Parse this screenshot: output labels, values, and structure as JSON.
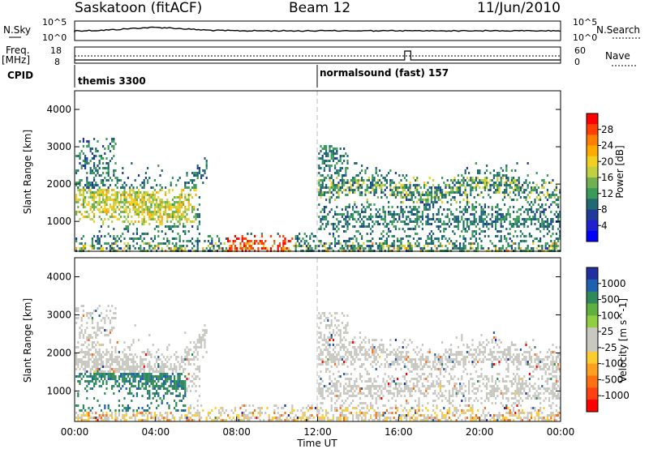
{
  "header": {
    "station": "Saskatoon (fitACF)",
    "beam": "Beam 12",
    "date": "11/Jun/2010"
  },
  "top_panels": {
    "nsky_label": "N.Sky",
    "nsky_ticks": [
      "10^5",
      "10^0"
    ],
    "nsearch_label": "N.Search",
    "nsearch_ticks": [
      "10^5",
      "10^0"
    ],
    "freq_label": "Freq.",
    "freq_unit": "[MHz]",
    "freq_ticks": [
      "18",
      "8"
    ],
    "nave_label": "Nave",
    "nave_ticks": [
      "60",
      "0"
    ],
    "cpid_label": "CPID",
    "cpid_segments": [
      {
        "name": "themis 3300",
        "start_hour": 0
      },
      {
        "name": "normalsound (fast) 157",
        "start_hour": 12
      }
    ]
  },
  "chart_data": [
    {
      "type": "heatmap",
      "panel": "power",
      "ylabel": "Slant Range [km]",
      "xlabel": "",
      "xlim_hours": [
        0,
        24
      ],
      "ylim_km": [
        200,
        4500
      ],
      "y_ticks": [
        "1000",
        "2000",
        "3000",
        "4000"
      ],
      "colorbar": {
        "label": "Power [dB]",
        "ticks": [
          "28",
          "24",
          "20",
          "16",
          "12",
          "8",
          "4"
        ],
        "colors": [
          "#ff0000",
          "#ff4000",
          "#ff7f00",
          "#ffaa00",
          "#f0d020",
          "#c0d040",
          "#70b050",
          "#3a9a5a",
          "#1e6a70",
          "#1f3a9a",
          "#2020d0",
          "#0000ff"
        ]
      },
      "features": [
        {
          "hours": [
            0,
            6
          ],
          "range_km": [
            700,
            2100
          ],
          "level_db": 18
        },
        {
          "hours": [
            8,
            10.5
          ],
          "range_km": [
            250,
            600
          ],
          "level_db": 30
        },
        {
          "hours": [
            12,
            24
          ],
          "range_km": [
            300,
            2100
          ],
          "level_db": 10
        }
      ]
    },
    {
      "type": "heatmap",
      "panel": "velocity",
      "ylabel": "Slant Range [km]",
      "xlabel": "Time UT",
      "xlim_hours": [
        0,
        24
      ],
      "ylim_km": [
        200,
        4500
      ],
      "y_ticks": [
        "1000",
        "2000",
        "3000",
        "4000"
      ],
      "x_ticks": [
        "00:00",
        "04:00",
        "08:00",
        "12:00",
        "16:00",
        "20:00",
        "00:00"
      ],
      "colorbar": {
        "label": "Velocity [m s^-1]",
        "ticks": [
          "1000",
          "500",
          "100",
          "25",
          "-25",
          "-100",
          "-500",
          "-1000"
        ],
        "colors": [
          "#2030a0",
          "#2060b0",
          "#2e8a5a",
          "#60b040",
          "#90d040",
          "#c8c8c0",
          "#c8c8c0",
          "#ffcc30",
          "#ffa020",
          "#ff7010",
          "#ff4010",
          "#ff0000"
        ]
      },
      "features": [
        {
          "hours": [
            0,
            6
          ],
          "range_km": [
            600,
            2000
          ],
          "velocity_mps": 100
        },
        {
          "hours": [
            12,
            24
          ],
          "range_km": [
            600,
            2000
          ],
          "velocity_mps": 0
        }
      ]
    }
  ],
  "colors": {
    "frame": "#000000",
    "marker_line": "#bbbbbb"
  }
}
